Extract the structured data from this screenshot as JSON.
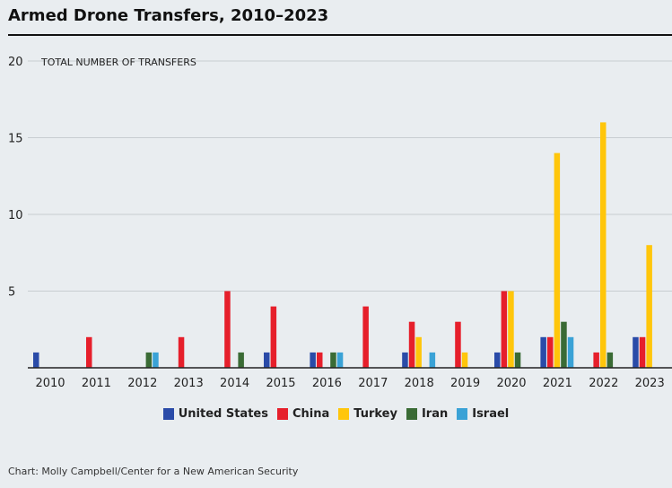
{
  "title": "Armed Drone Transfers, 2010–2023",
  "source": "Chart: Molly Campbell/Center for a New American Security",
  "chart_data": {
    "type": "bar",
    "title": "Armed Drone Transfers, 2010–2023",
    "ylabel": "TOTAL NUMBER OF TRANSFERS",
    "xlabel": "",
    "ylim": [
      0,
      20
    ],
    "yticks": [
      5,
      10,
      15,
      20
    ],
    "grid": true,
    "legend_position": "bottom",
    "categories": [
      "2010",
      "2011",
      "2012",
      "2013",
      "2014",
      "2015",
      "2016",
      "2017",
      "2018",
      "2019",
      "2020",
      "2021",
      "2022",
      "2023"
    ],
    "series": [
      {
        "name": "United States",
        "color": "#2a4ba8",
        "values": [
          1,
          0,
          0,
          0,
          0,
          1,
          1,
          0,
          1,
          0,
          1,
          2,
          0,
          2
        ]
      },
      {
        "name": "China",
        "color": "#e61f2b",
        "values": [
          0,
          2,
          0,
          2,
          5,
          4,
          1,
          4,
          3,
          3,
          5,
          2,
          1,
          2
        ]
      },
      {
        "name": "Turkey",
        "color": "#ffc60b",
        "values": [
          0,
          0,
          0,
          0,
          0,
          0,
          0,
          0,
          2,
          1,
          5,
          14,
          16,
          8
        ]
      },
      {
        "name": "Iran",
        "color": "#3a6b35",
        "values": [
          0,
          0,
          1,
          0,
          1,
          0,
          1,
          0,
          0,
          0,
          1,
          3,
          1,
          0
        ]
      },
      {
        "name": "Israel",
        "color": "#3aa2d6",
        "values": [
          0,
          0,
          1,
          0,
          0,
          0,
          1,
          0,
          1,
          0,
          0,
          2,
          0,
          0
        ]
      }
    ]
  }
}
